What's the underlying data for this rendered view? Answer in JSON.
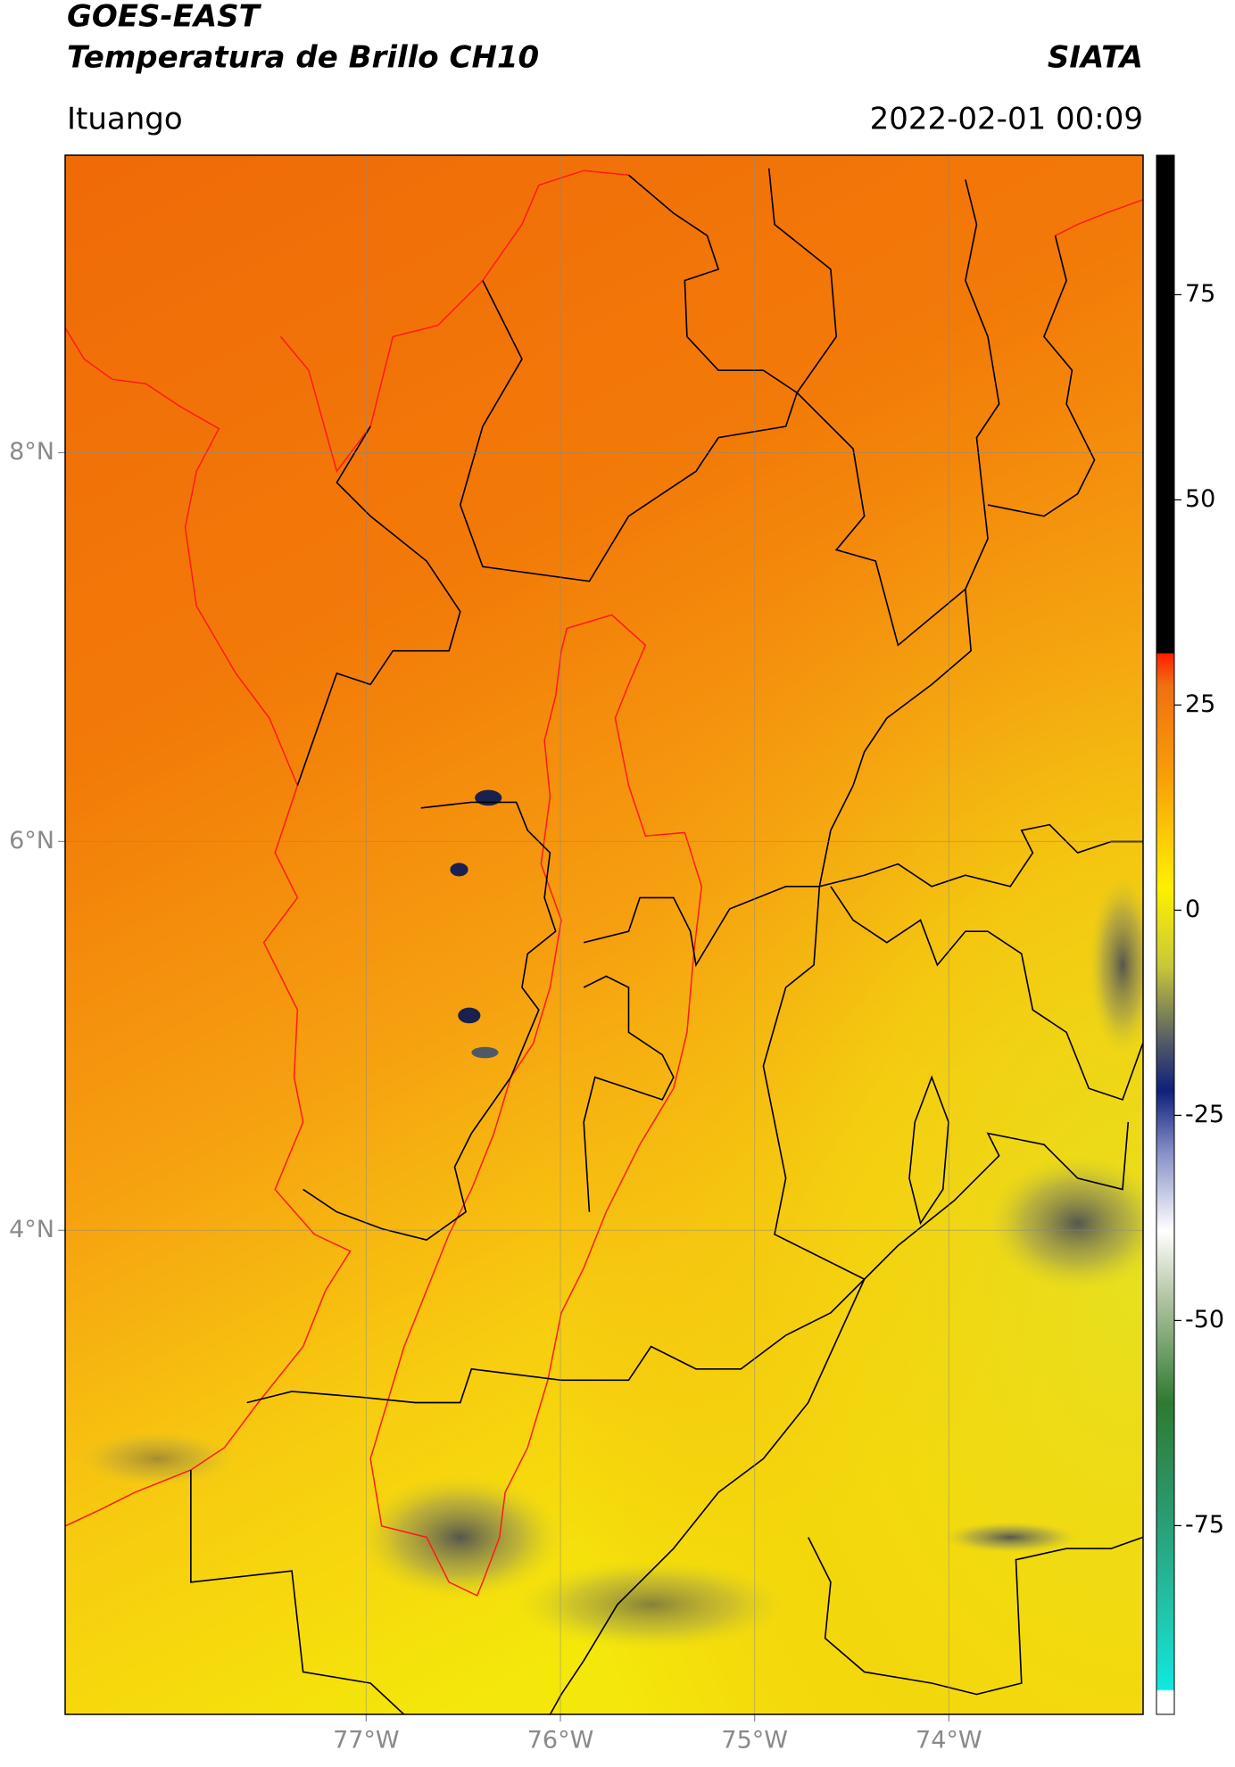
{
  "header": {
    "title": "GOES-EAST",
    "subtitle": "Temperatura de Brillo CH10",
    "brand": "SIATA",
    "location": "Ituango",
    "timestamp": "2022-02-01 00:09"
  },
  "map": {
    "xlim": [
      -78.55,
      -73.0
    ],
    "ylim": [
      1.51,
      9.53
    ],
    "xticks": [
      {
        "value": -77,
        "label": "77°W"
      },
      {
        "value": -76,
        "label": "76°W"
      },
      {
        "value": -75,
        "label": "75°W"
      },
      {
        "value": -74,
        "label": "74°W"
      }
    ],
    "yticks": [
      {
        "value": 8,
        "label": "8°N"
      },
      {
        "value": 6,
        "label": "6°N"
      },
      {
        "value": 4,
        "label": "4°N"
      }
    ]
  },
  "colorbar": {
    "ylim": [
      -98,
      92
    ],
    "yticks": [
      75,
      50,
      25,
      0,
      -25,
      -50,
      -75
    ]
  }
}
